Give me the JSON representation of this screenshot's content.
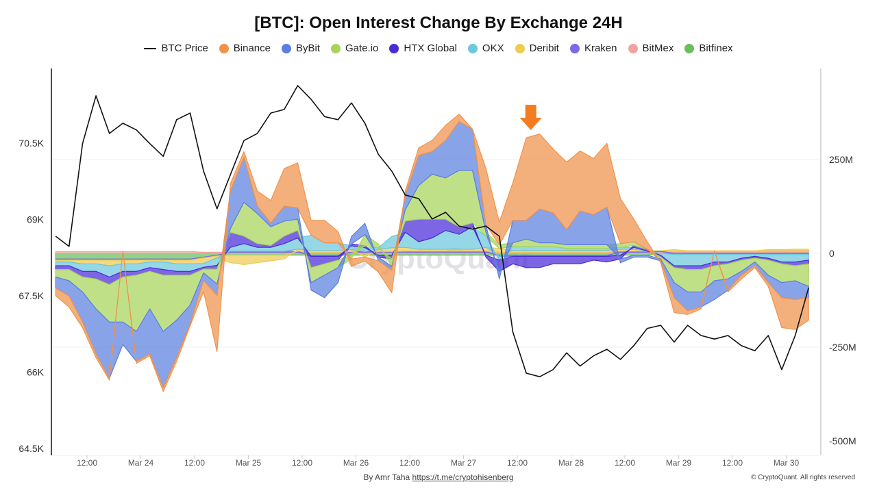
{
  "chart_data": {
    "type": "area",
    "title": "[BTC]: Open Interest Change By Exchange 24H",
    "stacked": true,
    "legend_position": "top",
    "grid": true,
    "x": [
      "Mar 23 05:00",
      "Mar 23 08:00",
      "Mar 23 11:00",
      "Mar 23 14:00",
      "Mar 23 17:00",
      "Mar 23 20:00",
      "Mar 23 23:00",
      "Mar 24 02:00",
      "Mar 24 05:00",
      "Mar 24 08:00",
      "Mar 24 11:00",
      "Mar 24 14:00",
      "Mar 24 17:00",
      "Mar 24 20:00",
      "Mar 24 23:00",
      "Mar 25 02:00",
      "Mar 25 05:00",
      "Mar 25 08:00",
      "Mar 25 11:00",
      "Mar 25 14:00",
      "Mar 25 17:00",
      "Mar 25 20:00",
      "Mar 25 23:00",
      "Mar 26 02:00",
      "Mar 26 05:00",
      "Mar 26 08:00",
      "Mar 26 11:00",
      "Mar 26 14:00",
      "Mar 26 17:00",
      "Mar 26 20:00",
      "Mar 26 23:00",
      "Mar 27 02:00",
      "Mar 27 05:00",
      "Mar 27 08:00",
      "Mar 27 11:00",
      "Mar 27 14:00",
      "Mar 27 17:00",
      "Mar 27 20:00",
      "Mar 27 23:00",
      "Mar 28 02:00",
      "Mar 28 05:00",
      "Mar 28 08:00",
      "Mar 28 11:00",
      "Mar 28 14:00",
      "Mar 28 17:00",
      "Mar 28 20:00",
      "Mar 28 23:00",
      "Mar 29 02:00",
      "Mar 29 05:00",
      "Mar 29 08:00",
      "Mar 29 11:00",
      "Mar 29 14:00",
      "Mar 29 17:00",
      "Mar 29 20:00",
      "Mar 29 23:00",
      "Mar 30 02:00",
      "Mar 30 05:00"
    ],
    "x_tick_labels": [
      "12:00",
      "Mar 24",
      "12:00",
      "Mar 25",
      "12:00",
      "Mar 26",
      "12:00",
      "Mar 27",
      "12:00",
      "Mar 28",
      "12:00",
      "Mar 29",
      "12:00",
      "Mar 30"
    ],
    "x_tick_times": [
      "Mar 23 12:00",
      "Mar 24 00:00",
      "Mar 24 12:00",
      "Mar 25 00:00",
      "Mar 25 12:00",
      "Mar 26 00:00",
      "Mar 26 12:00",
      "Mar 27 00:00",
      "Mar 27 12:00",
      "Mar 28 00:00",
      "Mar 28 12:00",
      "Mar 29 00:00",
      "Mar 29 12:00",
      "Mar 30 00:00"
    ],
    "y_left": {
      "label": "",
      "lim": [
        64500,
        72100
      ],
      "ticks": [
        64500,
        66000,
        67500,
        69000,
        70500
      ],
      "tick_labels": [
        "64.5K",
        "66K",
        "67.5K",
        "69K",
        "70.5K"
      ]
    },
    "y_right": {
      "label": "",
      "lim": [
        -500000000,
        500000000
      ],
      "ticks": [
        -500000000,
        -250000000,
        0,
        250000000
      ],
      "tick_labels": [
        "-500M",
        "-250M",
        "0",
        "250M"
      ]
    },
    "price_series": {
      "name": "BTC Price",
      "color": "#111111",
      "axis": "left",
      "values": [
        68670,
        68470,
        70490,
        71430,
        70690,
        70890,
        70760,
        70490,
        70240,
        70960,
        71090,
        69950,
        69210,
        69880,
        70550,
        70690,
        71090,
        71160,
        71630,
        71360,
        71020,
        70960,
        71290,
        70890,
        70280,
        69950,
        69480,
        69410,
        69010,
        69140,
        68870,
        68810,
        68870,
        68670,
        66790,
        65980,
        65910,
        66050,
        66380,
        66120,
        66320,
        66450,
        66250,
        66520,
        66860,
        66920,
        66590,
        66920,
        66720,
        66650,
        66720,
        66520,
        66420,
        66720,
        66050,
        66720,
        67660
      ]
    },
    "series_unit": "M USD",
    "series": [
      {
        "name": "Binance",
        "color": "#F0924A",
        "values": [
          -20,
          -30,
          -15,
          -10,
          -5,
          0,
          -5,
          -5,
          -10,
          -10,
          -5,
          -30,
          -150,
          20,
          15,
          40,
          60,
          100,
          120,
          40,
          60,
          30,
          -20,
          -10,
          -30,
          -60,
          10,
          20,
          30,
          40,
          20,
          0,
          150,
          60,
          100,
          220,
          200,
          170,
          180,
          160,
          150,
          170,
          120,
          60,
          20,
          -5,
          -40,
          -10,
          -5,
          0,
          -5,
          -10,
          -5,
          -10,
          -80,
          -80,
          -60
        ]
      },
      {
        "name": "ByBit",
        "color": "#5B7FE0",
        "values": [
          -30,
          -40,
          -80,
          -120,
          -150,
          -60,
          -80,
          -120,
          -150,
          -100,
          -50,
          -20,
          -30,
          100,
          120,
          20,
          10,
          40,
          30,
          -20,
          -60,
          -40,
          20,
          30,
          -10,
          -10,
          40,
          80,
          60,
          100,
          130,
          110,
          20,
          -20,
          60,
          50,
          90,
          80,
          40,
          90,
          80,
          100,
          -10,
          -5,
          -5,
          -5,
          -40,
          -50,
          -40,
          -50,
          -30,
          -10,
          -10,
          -20,
          -40,
          -50,
          -30
        ]
      },
      {
        "name": "Gate.io",
        "color": "#A8D45A",
        "values": [
          -20,
          -30,
          -40,
          -80,
          -100,
          -120,
          -150,
          -100,
          -150,
          -120,
          -80,
          -10,
          -40,
          10,
          90,
          80,
          50,
          40,
          30,
          -40,
          -30,
          -20,
          -10,
          30,
          10,
          -20,
          30,
          90,
          120,
          110,
          150,
          140,
          10,
          10,
          10,
          20,
          10,
          10,
          10,
          10,
          10,
          10,
          10,
          10,
          0,
          -5,
          -40,
          -60,
          -60,
          -40,
          -40,
          -30,
          -10,
          -40,
          -50,
          -40,
          -60
        ]
      },
      {
        "name": "HTX Global",
        "color": "#4B2BD8",
        "values": [
          -10,
          -10,
          -15,
          -20,
          -20,
          -15,
          -10,
          -10,
          -15,
          -10,
          -10,
          -5,
          -10,
          40,
          20,
          10,
          5,
          20,
          20,
          -30,
          -20,
          -10,
          5,
          5,
          -5,
          -10,
          30,
          60,
          50,
          30,
          20,
          10,
          -5,
          -30,
          -20,
          -30,
          -30,
          -20,
          -20,
          -20,
          -10,
          -15,
          -10,
          5,
          5,
          -5,
          -5,
          -10,
          -10,
          -10,
          -5,
          -5,
          -5,
          -5,
          -5,
          -10,
          -10
        ]
      },
      {
        "name": "OKX",
        "color": "#6CC8DE",
        "values": [
          -10,
          -10,
          -20,
          -20,
          -30,
          -20,
          -20,
          -15,
          -20,
          -20,
          -20,
          -10,
          -20,
          10,
          20,
          10,
          10,
          20,
          30,
          40,
          20,
          20,
          10,
          10,
          5,
          30,
          40,
          20,
          30,
          50,
          40,
          60,
          30,
          -10,
          10,
          10,
          10,
          10,
          5,
          5,
          5,
          5,
          5,
          5,
          0,
          -5,
          -30,
          -30,
          -30,
          -20,
          -20,
          -10,
          -5,
          -10,
          -20,
          -20,
          -15
        ]
      },
      {
        "name": "Deribit",
        "color": "#EFCB50",
        "values": [
          -5,
          -5,
          -10,
          -10,
          -15,
          -10,
          -10,
          -5,
          -5,
          -10,
          -10,
          -15,
          -5,
          -20,
          -25,
          -20,
          -15,
          -10,
          5,
          5,
          5,
          5,
          5,
          -5,
          5,
          10,
          10,
          5,
          5,
          5,
          5,
          5,
          10,
          10,
          5,
          5,
          5,
          5,
          5,
          5,
          5,
          5,
          5,
          5,
          0,
          0,
          5,
          2,
          2,
          2,
          2,
          2,
          2,
          2,
          2,
          3,
          3
        ]
      },
      {
        "name": "Kraken",
        "color": "#7C6BE6",
        "values": [
          -3,
          -3,
          -3,
          -3,
          -3,
          -3,
          -3,
          -3,
          -3,
          -3,
          -3,
          -2,
          -2,
          3,
          3,
          3,
          3,
          3,
          3,
          -3,
          -3,
          -3,
          2,
          2,
          2,
          2,
          3,
          3,
          3,
          3,
          3,
          3,
          3,
          -3,
          -3,
          -3,
          -3,
          -3,
          -3,
          -3,
          -3,
          -3,
          3,
          3,
          3,
          2,
          -3,
          -3,
          -3,
          -3,
          -3,
          -3,
          -3,
          -3,
          -3,
          -3,
          -3
        ]
      },
      {
        "name": "BitMex",
        "color": "#EFA3A0",
        "values": [
          5,
          5,
          5,
          5,
          5,
          5,
          5,
          5,
          5,
          5,
          5,
          3,
          3,
          3,
          3,
          3,
          3,
          3,
          3,
          3,
          3,
          3,
          3,
          3,
          3,
          3,
          3,
          3,
          3,
          3,
          3,
          3,
          3,
          3,
          3,
          3,
          3,
          3,
          3,
          3,
          3,
          3,
          3,
          3,
          3,
          3,
          3,
          3,
          3,
          3,
          3,
          3,
          3,
          5,
          5,
          5,
          5
        ]
      },
      {
        "name": "Bitfinex",
        "color": "#6ABF59",
        "values": [
          -15,
          -15,
          -15,
          -15,
          -15,
          -15,
          -15,
          -15,
          -15,
          -15,
          -15,
          -10,
          -5,
          -5,
          -5,
          -5,
          -5,
          -5,
          -5,
          -5,
          -5,
          -5,
          -5,
          -5,
          -5,
          -5,
          -5,
          -5,
          -5,
          -5,
          -5,
          -5,
          -5,
          -5,
          -5,
          -5,
          -5,
          -5,
          -5,
          -5,
          -5,
          -5,
          -5,
          -5,
          -5,
          2,
          2,
          2,
          2,
          2,
          2,
          2,
          2,
          3,
          3,
          3,
          3
        ]
      }
    ],
    "annotations": [
      {
        "type": "arrow-down",
        "color": "#F47C20",
        "at": "Mar 27 17:00"
      }
    ],
    "watermark": "CryptoQuant"
  },
  "legend": {
    "price": "BTC Price",
    "items": [
      "Binance",
      "ByBit",
      "Gate.io",
      "HTX Global",
      "OKX",
      "Deribit",
      "Kraken",
      "BitMex",
      "Bitfinex"
    ]
  },
  "footer": {
    "by": "By Amr Taha",
    "link": "https://t.me/cryptohisenberg",
    "copyright": "© CryptoQuant. All rights reserved"
  }
}
